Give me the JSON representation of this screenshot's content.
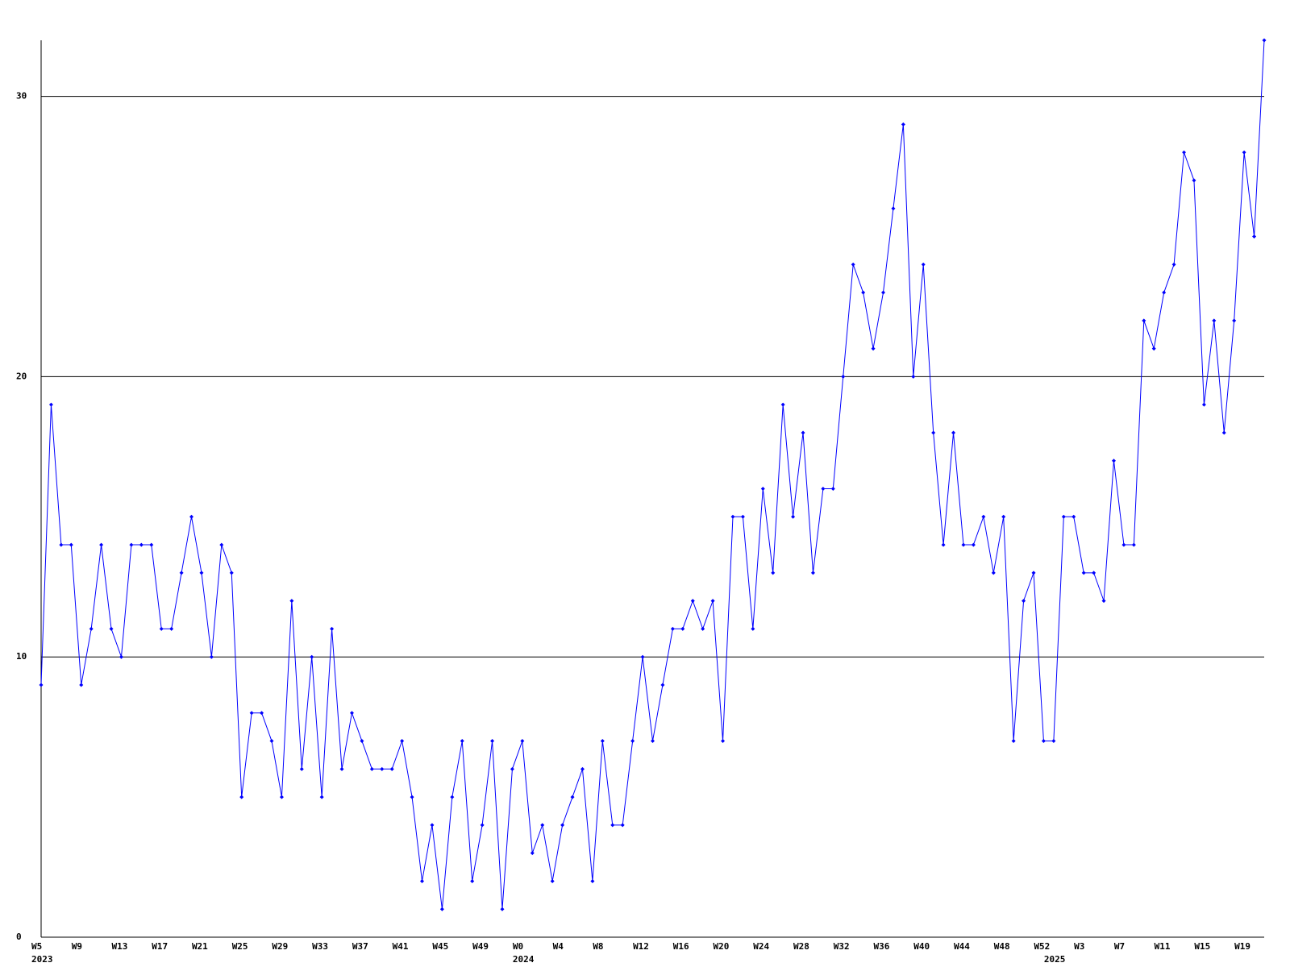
{
  "chart_data": {
    "type": "line",
    "categories": [
      "W5",
      null,
      null,
      null,
      "W9",
      null,
      null,
      null,
      "W13",
      null,
      null,
      null,
      "W17",
      null,
      null,
      null,
      "W21",
      null,
      null,
      null,
      "W25",
      null,
      null,
      null,
      "W29",
      null,
      null,
      null,
      "W33",
      null,
      null,
      null,
      "W37",
      null,
      null,
      null,
      "W41",
      null,
      null,
      null,
      "W45",
      null,
      null,
      null,
      "W49",
      null,
      null,
      null,
      "W0",
      null,
      null,
      null,
      "W4",
      null,
      null,
      null,
      "W8",
      null,
      null,
      null,
      "W12",
      null,
      null,
      null,
      "W16",
      null,
      null,
      null,
      "W20",
      null,
      null,
      null,
      "W24",
      null,
      null,
      null,
      "W28",
      null,
      null,
      null,
      "W32",
      null,
      null,
      null,
      "W36",
      null,
      null,
      null,
      "W40",
      null,
      null,
      null,
      "W44",
      null,
      null,
      null,
      "W48",
      null,
      null,
      null,
      "W52",
      null,
      null,
      null,
      "W3",
      null,
      null,
      null,
      "W7",
      null,
      null,
      null,
      "W11",
      null,
      null,
      null,
      "W15",
      null,
      null,
      null,
      "W19",
      null,
      null
    ],
    "year_labels": [
      {
        "category": 0,
        "label": "2023"
      },
      {
        "category": 48,
        "label": "2024"
      },
      {
        "category": 101,
        "label": "2025"
      }
    ],
    "series": [
      {
        "color": "#0000ff",
        "values": [
          9,
          19,
          14,
          14,
          9,
          11,
          14,
          11,
          10,
          14,
          14,
          14,
          11,
          11,
          13,
          15,
          13,
          10,
          14,
          13,
          5,
          8,
          8,
          7,
          5,
          12,
          6,
          10,
          5,
          11,
          6,
          8,
          7,
          6,
          6,
          6,
          7,
          5,
          2,
          4,
          1,
          5,
          7,
          2,
          4,
          7,
          1,
          6,
          7,
          3,
          4,
          2,
          4,
          5,
          6,
          2,
          7,
          4,
          4,
          7,
          10,
          7,
          9,
          11,
          11,
          12,
          11,
          12,
          7,
          15,
          15,
          11,
          16,
          13,
          19,
          15,
          18,
          13,
          16,
          16,
          20,
          24,
          23,
          21,
          23,
          26,
          29,
          20,
          24,
          18,
          14,
          18,
          14,
          14,
          15,
          13,
          15,
          7,
          12,
          13,
          7,
          7,
          15,
          15,
          13,
          13,
          12,
          17,
          14,
          14,
          22,
          21,
          23,
          24,
          28,
          27,
          19,
          22,
          18,
          22,
          28,
          25,
          32
        ]
      }
    ],
    "ylim": [
      0,
      32
    ],
    "yticks": [
      0,
      10,
      20,
      30
    ],
    "grid": true
  }
}
